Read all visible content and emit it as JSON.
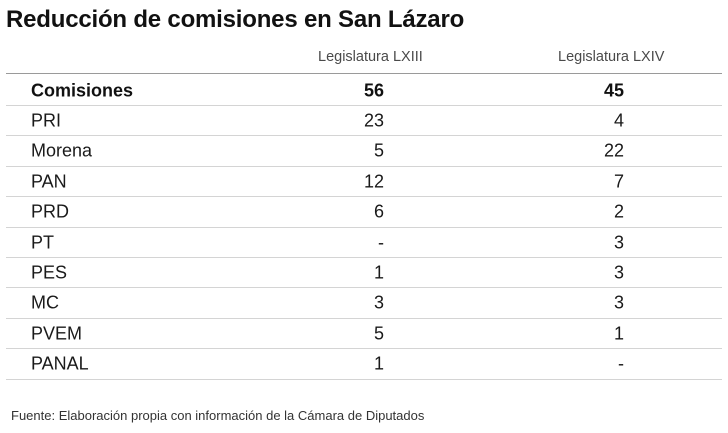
{
  "chart_data": {
    "type": "table",
    "title": "Reducción de comisiones en San Lázaro",
    "columns": [
      "Legislatura LXIII",
      "Legislatura LXIV"
    ],
    "total": {
      "label": "Comisiones",
      "values": [
        "56",
        "45"
      ]
    },
    "rows": [
      {
        "label": "PRI",
        "values": [
          "23",
          "4"
        ]
      },
      {
        "label": "Morena",
        "values": [
          "5",
          "22"
        ]
      },
      {
        "label": "PAN",
        "values": [
          "12",
          "7"
        ]
      },
      {
        "label": "PRD",
        "values": [
          "6",
          "2"
        ]
      },
      {
        "label": "PT",
        "values": [
          "-",
          "3"
        ]
      },
      {
        "label": "PES",
        "values": [
          "1",
          "3"
        ]
      },
      {
        "label": "MC",
        "values": [
          "3",
          "3"
        ]
      },
      {
        "label": "PVEM",
        "values": [
          "5",
          "1"
        ]
      },
      {
        "label": "PANAL",
        "values": [
          "1",
          "-"
        ]
      }
    ],
    "source": "Fuente: Elaboración propia con información de la Cámara de Diputados"
  }
}
